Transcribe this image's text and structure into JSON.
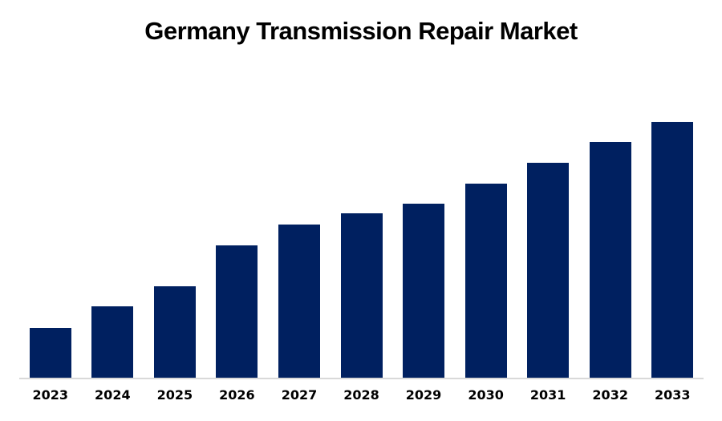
{
  "chart_data": {
    "type": "bar",
    "title": "Germany Transmission Repair Market",
    "categories": [
      "2023",
      "2024",
      "2025",
      "2026",
      "2027",
      "2028",
      "2029",
      "2030",
      "2031",
      "2032",
      "2033"
    ],
    "values": [
      19.4,
      27.9,
      35.7,
      51.7,
      59.9,
      64.3,
      68.0,
      75.9,
      84.0,
      92.2,
      100
    ],
    "values_are_relative": true,
    "xlabel": "",
    "ylabel": "",
    "ylim": [
      0,
      110
    ],
    "value_axis_visible": false,
    "gridlines": false,
    "legend_position": "none",
    "data_labels": false,
    "bar_color": "#002060",
    "axis_line_color": "#d9d9d9",
    "title_color": "#000000",
    "label_color": "#000000",
    "background_color": "#ffffff"
  }
}
